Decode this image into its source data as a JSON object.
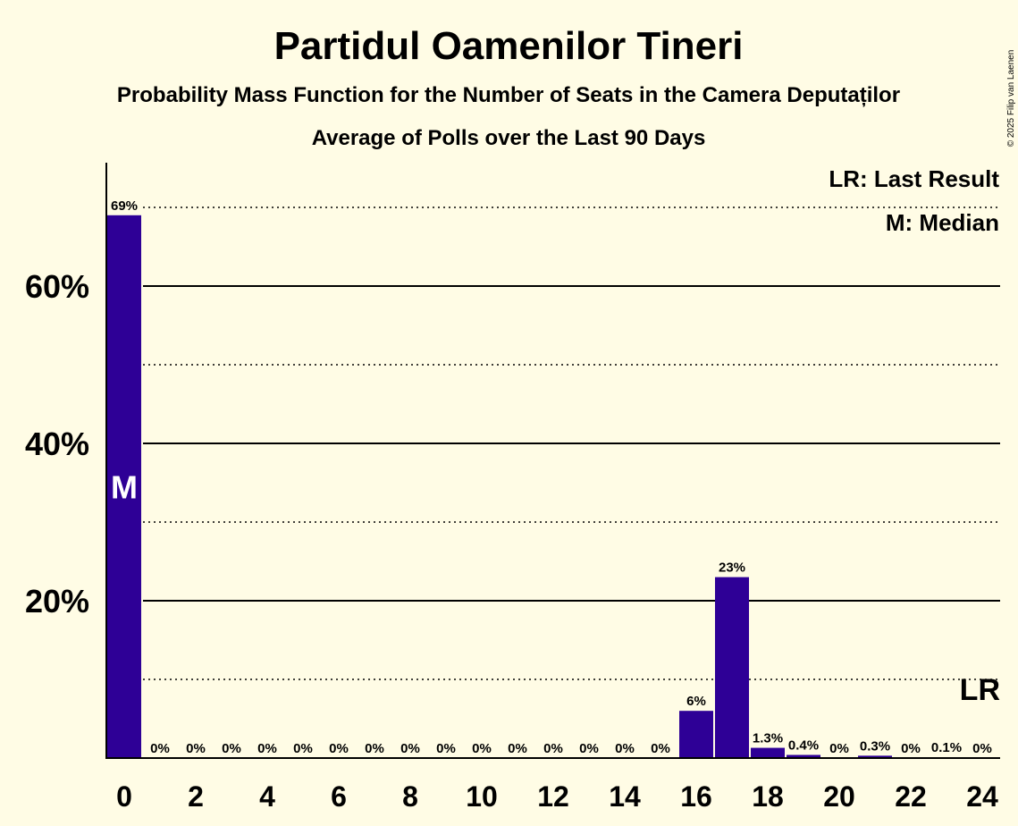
{
  "chart_data": {
    "type": "bar",
    "title": "Partidul Oamenilor Tineri",
    "subtitle": "Probability Mass Function for the Number of Seats in the Camera Deputaților",
    "subtitle2": "Average of Polls over the Last 90 Days",
    "copyright": "© 2025 Filip van Laenen",
    "legend": [
      "LR: Last Result",
      "M: Median"
    ],
    "x": [
      0,
      1,
      2,
      3,
      4,
      5,
      6,
      7,
      8,
      9,
      10,
      11,
      12,
      13,
      14,
      15,
      16,
      17,
      18,
      19,
      20,
      21,
      22,
      23,
      24
    ],
    "values": [
      69,
      0,
      0,
      0,
      0,
      0,
      0,
      0,
      0,
      0,
      0,
      0,
      0,
      0,
      0,
      0,
      6,
      23,
      1.3,
      0.4,
      0,
      0.3,
      0,
      0.1,
      0
    ],
    "value_labels": [
      "69%",
      "0%",
      "0%",
      "0%",
      "0%",
      "0%",
      "0%",
      "0%",
      "0%",
      "0%",
      "0%",
      "0%",
      "0%",
      "0%",
      "0%",
      "0%",
      "6%",
      "23%",
      "1.3%",
      "0.4%",
      "0%",
      "0.3%",
      "0%",
      "0.1%",
      "0%"
    ],
    "xticks": [
      0,
      2,
      4,
      6,
      8,
      10,
      12,
      14,
      16,
      18,
      20,
      22,
      24
    ],
    "yticks_major": [
      20,
      40,
      60
    ],
    "ytick_labels": [
      "20%",
      "40%",
      "60%"
    ],
    "yticks_minor": [
      10,
      30,
      50,
      70
    ],
    "ylim": [
      0,
      75
    ],
    "median_seat": 0,
    "median_marker": "M",
    "last_result_seat": 24,
    "last_result_marker": "LR",
    "bar_color": "#2E0096",
    "background": "#FFFCE5"
  }
}
